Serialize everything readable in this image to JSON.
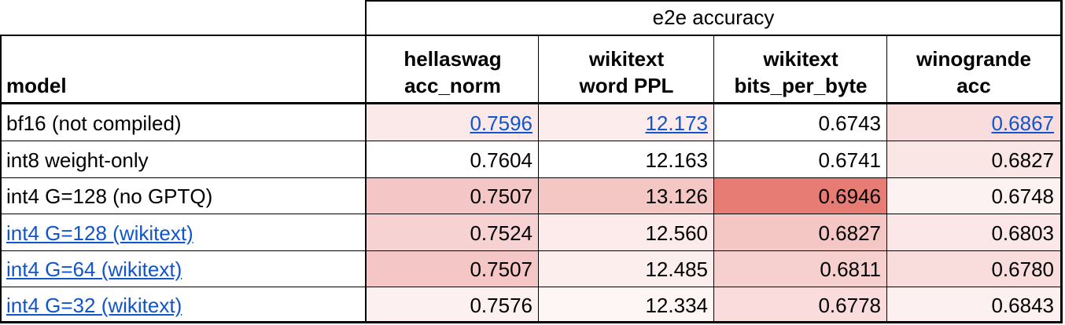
{
  "table": {
    "group_header": "e2e accuracy",
    "columns": [
      {
        "lines": [
          "model"
        ]
      },
      {
        "lines": [
          "hellaswag",
          "acc_norm"
        ]
      },
      {
        "lines": [
          "wikitext",
          "word PPL"
        ]
      },
      {
        "lines": [
          "wikitext",
          "bits_per_byte"
        ]
      },
      {
        "lines": [
          "winogrande",
          "acc"
        ]
      }
    ],
    "rows": [
      [
        "bf16 (not compiled)",
        "0.7596",
        "12.173",
        "0.6743",
        "0.6867"
      ],
      [
        "int8 weight-only",
        "0.7604",
        "12.163",
        "0.6741",
        "0.6827"
      ],
      [
        "int4 G=128 (no GPTQ)",
        "0.7507",
        "13.126",
        "0.6946",
        "0.6748"
      ],
      [
        "int4 G=128 (wikitext)",
        "0.7524",
        "12.560",
        "0.6827",
        "0.6803"
      ],
      [
        "int4 G=64 (wikitext)",
        "0.7507",
        "12.485",
        "0.6811",
        "0.6780"
      ],
      [
        "int4 G=32 (wikitext)",
        "0.7576",
        "12.334",
        "0.6778",
        "0.6843"
      ]
    ]
  }
}
